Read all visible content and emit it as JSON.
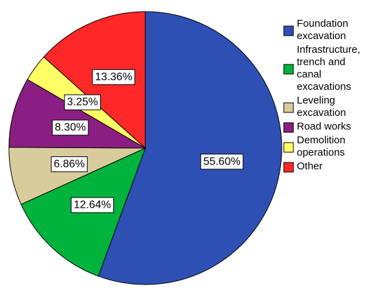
{
  "chart_data": {
    "type": "pie",
    "title": "",
    "categories": [
      "Foundation excavation",
      "Infrastructure, trench and canal excavations",
      "Leveling excavation",
      "Road works",
      "Demolition operations",
      "Other"
    ],
    "values": [
      55.6,
      12.64,
      6.86,
      8.3,
      3.25,
      13.36
    ],
    "value_labels": [
      "55.60%",
      "12.64%",
      "6.86%",
      "8.30%",
      "3.25%",
      "13.36%"
    ],
    "colors": [
      "#2e50b4",
      "#00b33c",
      "#d8cc9c",
      "#8a1e82",
      "#ffff66",
      "#ff2828"
    ],
    "legend": {
      "placement": "right",
      "entries": [
        {
          "lines": [
            "Foundation",
            "excavation"
          ],
          "color": "#2e50b4"
        },
        {
          "lines": [
            "Infrastructure,",
            "trench and",
            "canal",
            "excavations"
          ],
          "color": "#00b33c"
        },
        {
          "lines": [
            "Leveling",
            "excavation"
          ],
          "color": "#d8cc9c"
        },
        {
          "lines": [
            "Road works"
          ],
          "color": "#8a1e82"
        },
        {
          "lines": [
            "Demolition",
            "operations"
          ],
          "color": "#ffff66"
        },
        {
          "lines": [
            "Other"
          ],
          "color": "#ff2828"
        }
      ]
    },
    "start_angle_deg": 0,
    "direction": "clockwise"
  }
}
